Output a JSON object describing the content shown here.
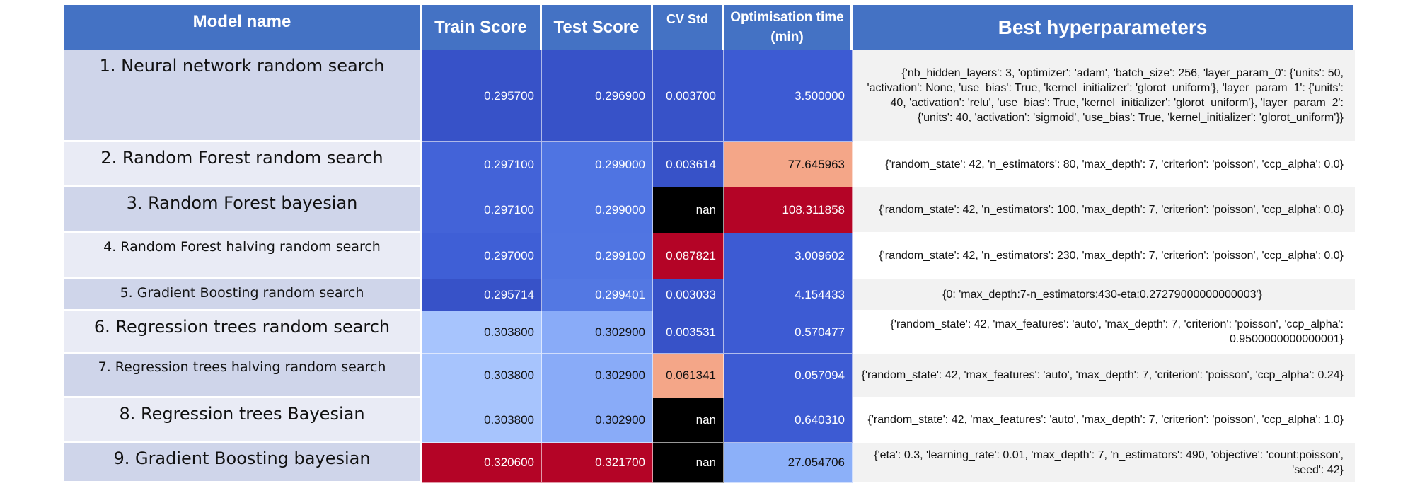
{
  "headers": {
    "model_name": "Model name",
    "train_score": "Train Score",
    "test_score": "Test Score",
    "cv_std": "CV Std",
    "opt_time": "Optimisation time (min)",
    "best_hyperparameters": "Best hyperparameters"
  },
  "rows": [
    {
      "name": "1. Neural network random search",
      "train": "0.295700",
      "test": "0.296900",
      "cv": "0.003700",
      "time": "3.500000",
      "params": "{'nb_hidden_layers': 3, 'optimizer': 'adam', 'batch_size': 256, 'layer_param_0': {'units': 50, 'activation': None, 'use_bias': True, 'kernel_initializer': 'glorot_uniform'}, 'layer_param_1': {'units': 40, 'activation': 'relu', 'use_bias': True, 'kernel_initializer': 'glorot_uniform'}, 'layer_param_2': {'units': 40, 'activation': 'sigmoid', 'use_bias': True, 'kernel_initializer': 'glorot_uniform'}}",
      "colors": {
        "train": "#3752c8",
        "test": "#3752c8",
        "cv": "#3752c8",
        "time": "#3d5bd3"
      }
    },
    {
      "name": "2. Random Forest random search",
      "train": "0.297100",
      "test": "0.299000",
      "cv": "0.003614",
      "time": "77.645963",
      "params": "{'random_state': 42, 'n_estimators': 80, 'max_depth': 7, 'criterion': 'poisson', 'ccp_alpha': 0.0}",
      "colors": {
        "train": "#4363d8",
        "test": "#4f74e2",
        "cv": "#3752c8",
        "time": "#f4a688"
      }
    },
    {
      "name": "3. Random Forest bayesian",
      "train": "0.297100",
      "test": "0.299000",
      "cv": "nan",
      "time": "108.311858",
      "params": "{'random_state': 42, 'n_estimators': 100, 'max_depth': 7, 'criterion': 'poisson', 'ccp_alpha': 0.0}",
      "colors": {
        "train": "#4363d8",
        "test": "#4f74e2",
        "cv": "#000000",
        "time": "#b40426"
      }
    },
    {
      "name": "4. Random Forest halving random search",
      "train": "0.297000",
      "test": "0.299100",
      "cv": "0.087821",
      "time": "3.009602",
      "params": "{'random_state': 42, 'n_estimators': 230, 'max_depth': 7, 'criterion': 'poisson', 'ccp_alpha': 0.0}",
      "colors": {
        "train": "#3f5fd6",
        "test": "#5075e2",
        "cv": "#b40426",
        "time": "#3d5bd3"
      }
    },
    {
      "name": "5. Gradient Boosting random search",
      "train": "0.295714",
      "test": "0.299401",
      "cv": "0.003033",
      "time": "4.154433",
      "params": "{0: 'max_depth:7-n_estimators:430-eta:0.27279000000000003'}",
      "colors": {
        "train": "#3752c8",
        "test": "#5378e3",
        "cv": "#3752c8",
        "time": "#3d5bd3"
      }
    },
    {
      "name": "6. Regression trees random search",
      "train": "0.303800",
      "test": "0.302900",
      "cv": "0.003531",
      "time": "0.570477",
      "params": "{'random_state': 42, 'max_features': 'auto', 'max_depth': 7, 'criterion': 'poisson', 'ccp_alpha': 0.9500000000000001}",
      "colors": {
        "train": "#a7c4fd",
        "test": "#89abf8",
        "cv": "#3752c8",
        "time": "#3d5bd3"
      }
    },
    {
      "name": "7. Regression trees halving random search",
      "train": "0.303800",
      "test": "0.302900",
      "cv": "0.061341",
      "time": "0.057094",
      "params": "{'random_state': 42, 'max_features': 'auto', 'max_depth': 7, 'criterion': 'poisson', 'ccp_alpha': 0.24}",
      "colors": {
        "train": "#a7c4fd",
        "test": "#89abf8",
        "cv": "#f4a688",
        "time": "#3d5bd3"
      }
    },
    {
      "name": "8. Regression trees Bayesian",
      "train": "0.303800",
      "test": "0.302900",
      "cv": "nan",
      "time": "0.640310",
      "params": "{'random_state': 42, 'max_features': 'auto', 'max_depth': 7, 'criterion': 'poisson', 'ccp_alpha': 1.0}",
      "colors": {
        "train": "#a7c4fd",
        "test": "#89abf8",
        "cv": "#000000",
        "time": "#3d5bd3"
      }
    },
    {
      "name": "9. Gradient Boosting bayesian",
      "train": "0.320600",
      "test": "0.321700",
      "cv": "nan",
      "time": "27.054706",
      "params": "{'eta': 0.3, 'learning_rate': 0.01, 'max_depth': 7, 'n_estimators': 490, 'objective': 'count:poisson', 'seed': 42}",
      "colors": {
        "train": "#b40426",
        "test": "#b40426",
        "cv": "#000000",
        "time": "#8cb0f9"
      }
    }
  ]
}
